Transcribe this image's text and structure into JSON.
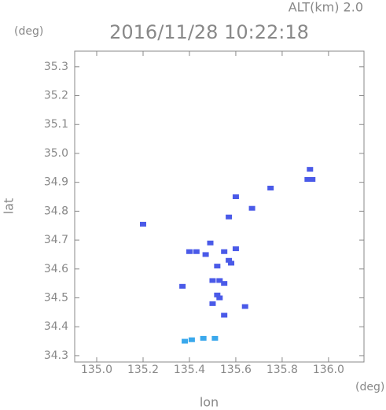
{
  "chart_data": {
    "type": "scatter",
    "title": "2016/11/28 10:22:18",
    "subtitle": "ALT(km) 2.0",
    "y_unit": "(deg)",
    "x_unit": "(deg)",
    "x_label": "lon",
    "y_label": "lat",
    "xlim": [
      134.905,
      136.153
    ],
    "ylim": [
      34.278,
      35.354
    ],
    "xticks": [
      {
        "value": 135.0,
        "label": "135.0"
      },
      135.2,
      135.4,
      135.6,
      135.8,
      {
        "value": 136.0,
        "label": "136.0"
      }
    ],
    "yticks": [
      35.3,
      35.2,
      35.1,
      {
        "value": 35.0,
        "label": "35.0"
      },
      34.9,
      34.8,
      34.7,
      34.6,
      34.5,
      34.4,
      34.3
    ],
    "series": [
      {
        "color": "#4a5ae8",
        "x": [
          135.2,
          135.91,
          135.92,
          135.93,
          135.75,
          135.67,
          135.57,
          135.49,
          135.4,
          135.43,
          135.47,
          135.55,
          135.57,
          135.6,
          135.58,
          135.52,
          135.5,
          135.53,
          135.55,
          135.52,
          135.53,
          135.5,
          135.55,
          135.64,
          135.37,
          135.6
        ],
        "values": [
          34.755,
          34.91,
          34.945,
          34.91,
          34.88,
          34.81,
          34.78,
          34.69,
          34.66,
          34.66,
          34.65,
          34.66,
          34.63,
          34.67,
          34.62,
          34.61,
          34.56,
          34.56,
          34.55,
          34.51,
          34.5,
          34.48,
          34.44,
          34.47,
          34.54,
          34.85
        ]
      },
      {
        "color": "#3aa8ec",
        "x": [
          135.38,
          135.41,
          135.46,
          135.51
        ],
        "values": [
          34.35,
          34.355,
          34.36,
          34.36
        ]
      }
    ]
  }
}
